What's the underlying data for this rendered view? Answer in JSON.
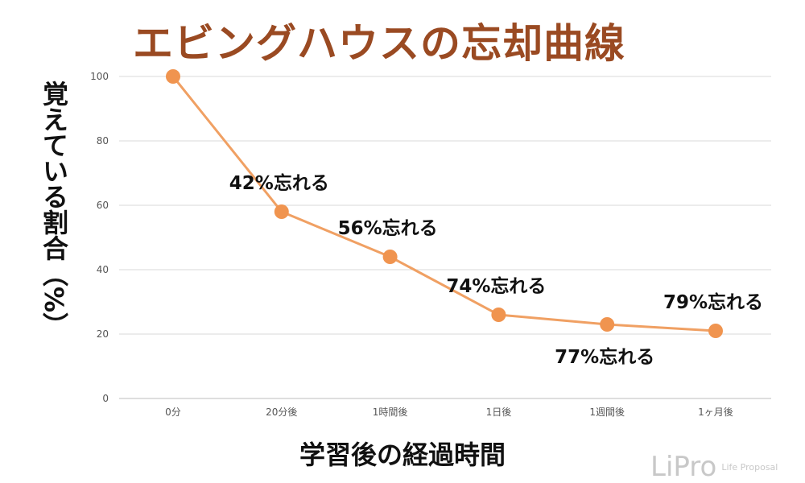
{
  "colors": {
    "title": "#9a4a22",
    "line": "#f0a063",
    "marker": "#f0944f",
    "grid": "#d9d9d9",
    "text": "#111111"
  },
  "logo": {
    "mark": "LiPro",
    "sub": "Life Proposal"
  },
  "chart_data": {
    "type": "line",
    "title": "エビングハウスの忘却曲線",
    "xlabel": "学習後の経過時間",
    "ylabel": "覚えている割合（%）",
    "categories": [
      "0分",
      "20分後",
      "1時間後",
      "1日後",
      "1週間後",
      "1ヶ月後"
    ],
    "values": [
      100,
      58,
      44,
      26,
      23,
      21
    ],
    "ylim": [
      0,
      100
    ],
    "yticks": [
      0,
      20,
      40,
      60,
      80,
      100
    ],
    "grid": true,
    "annotations": [
      {
        "category": "20分後",
        "text": "42%忘れる",
        "position": "above"
      },
      {
        "category": "1時間後",
        "text": "56%忘れる",
        "position": "above"
      },
      {
        "category": "1日後",
        "text": "74%忘れる",
        "position": "above"
      },
      {
        "category": "1週間後",
        "text": "77%忘れる",
        "position": "below"
      },
      {
        "category": "1ヶ月後",
        "text": "79%忘れる",
        "position": "above"
      }
    ]
  }
}
